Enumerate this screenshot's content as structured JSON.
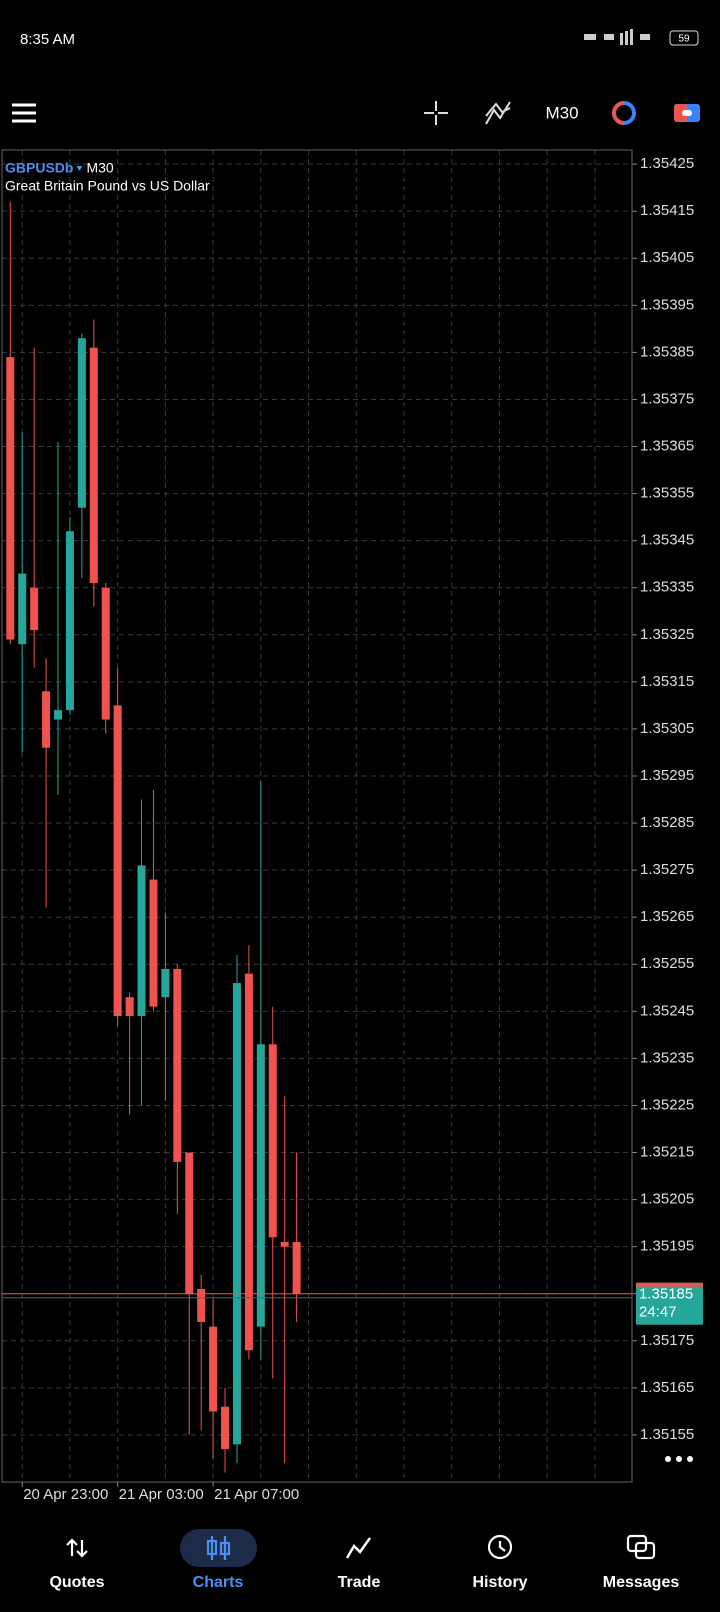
{
  "status_bar": {
    "time": "8:35 AM",
    "battery": "59"
  },
  "toolbar": {
    "timeframe": "M30"
  },
  "chart_data": {
    "type": "candlestick",
    "symbol": "GBPUSDb",
    "timeframe": "M30",
    "description": "Great Britain Pound vs US Dollar",
    "categories": [
      null,
      "20 Apr 23:00",
      null,
      null,
      null,
      null,
      null,
      null,
      null,
      "21 Apr 03:00",
      null,
      null,
      null,
      null,
      null,
      null,
      null,
      "21 Apr 07:00",
      null,
      null,
      null,
      null,
      null,
      null,
      null
    ],
    "open": [
      1.35384,
      1.35323,
      1.35335,
      1.35313,
      1.35307,
      1.35309,
      1.35352,
      1.35386,
      1.35335,
      1.3531,
      1.35248,
      1.35244,
      1.35273,
      1.35248,
      1.35254,
      1.35215,
      1.35186,
      1.35178,
      1.35161,
      1.35153,
      1.35253,
      1.35178,
      1.35238,
      1.35196,
      1.35196
    ],
    "high": [
      1.35417,
      1.35368,
      1.35386,
      1.3532,
      1.35366,
      1.3535,
      1.35389,
      1.35392,
      1.35336,
      1.35318,
      1.35249,
      1.3529,
      1.35292,
      1.35266,
      1.35255,
      1.35215,
      1.35189,
      1.35184,
      1.35165,
      1.35257,
      1.35259,
      1.35294,
      1.35246,
      1.35227,
      1.35215
    ],
    "low": [
      1.35323,
      1.353,
      1.35318,
      1.35267,
      1.35291,
      1.35308,
      1.35337,
      1.35331,
      1.35304,
      1.35242,
      1.35223,
      1.35225,
      1.35245,
      1.35226,
      1.35202,
      1.35155,
      1.35156,
      1.3515,
      1.35147,
      1.35149,
      1.35171,
      1.35171,
      1.35167,
      1.35149,
      1.35179
    ],
    "close": [
      1.35324,
      1.35338,
      1.35326,
      1.35301,
      1.35309,
      1.35347,
      1.35388,
      1.35336,
      1.35307,
      1.35244,
      1.35244,
      1.35276,
      1.35246,
      1.35254,
      1.35213,
      1.35185,
      1.35179,
      1.3516,
      1.35152,
      1.35251,
      1.35173,
      1.35238,
      1.35197,
      1.35195,
      1.35185
    ],
    "up_color": "#26a69a",
    "down_color": "#ef5350",
    "ylim": [
      1.35145,
      1.35428
    ],
    "yticks": [
      1.35155,
      1.35165,
      1.35175,
      1.35185,
      1.35195,
      1.35205,
      1.35215,
      1.35225,
      1.35235,
      1.35245,
      1.35255,
      1.35265,
      1.35275,
      1.35285,
      1.35295,
      1.35305,
      1.35315,
      1.35325,
      1.35335,
      1.35345,
      1.35355,
      1.35365,
      1.35375,
      1.35385,
      1.35395,
      1.35405,
      1.35415,
      1.35425
    ],
    "grid": true,
    "current_price": 1.35185,
    "countdown": "24:47"
  },
  "nav": {
    "items": [
      "Quotes",
      "Charts",
      "Trade",
      "History",
      "Messages"
    ],
    "active": 1
  }
}
